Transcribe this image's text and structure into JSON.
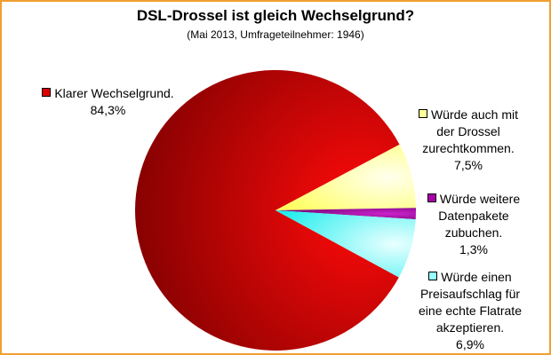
{
  "chart_data": {
    "type": "pie",
    "title": "DSL-Drossel ist gleich Wechselgrund?",
    "subtitle": "(Mai 2013, Umfrageteilnehmer: 1946)",
    "slices": [
      {
        "label": [
          "Klarer Wechselgrund."
        ],
        "value_text": "84,3%",
        "value": 84.3,
        "color": "#dd0000"
      },
      {
        "label": [
          "Würde auch mit",
          "der Drossel",
          "zurechtkommen."
        ],
        "value_text": "7,5%",
        "value": 7.5,
        "color": "#ffff99"
      },
      {
        "label": [
          "Würde weitere",
          "Datenpakete",
          "zubuchen."
        ],
        "value_text": "1,3%",
        "value": 1.3,
        "color": "#aa00aa"
      },
      {
        "label": [
          "Würde einen",
          "Preisaufschlag für",
          "eine echte Flatrate",
          "akzeptieren."
        ],
        "value_text": "6,9%",
        "value": 6.9,
        "color": "#99ffff"
      }
    ]
  }
}
